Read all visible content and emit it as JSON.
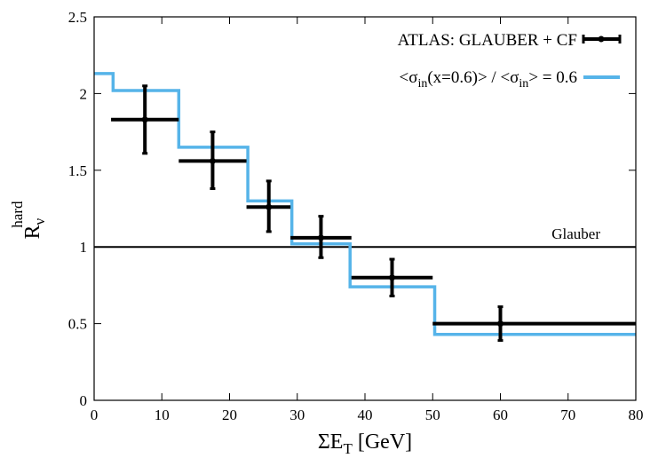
{
  "chart_data": {
    "type": "line",
    "x_axis": {
      "title_main": "ΣE",
      "title_sub": "T",
      "title_unit": " [GeV]",
      "range": [
        0,
        80
      ],
      "ticks": [
        0,
        10,
        20,
        30,
        40,
        50,
        60,
        70,
        80
      ],
      "tick_labels": [
        "0",
        "10",
        "20",
        "30",
        "40",
        "50",
        "60",
        "70",
        "80"
      ]
    },
    "y_axis": {
      "title_main": "R",
      "title_sub": "ν",
      "title_sup": "hard",
      "range": [
        0,
        2.5
      ],
      "ticks": [
        0,
        0.5,
        1,
        1.5,
        2,
        2.5
      ],
      "tick_labels": [
        "0",
        "0.5",
        "1",
        "1.5",
        "2",
        "2.5"
      ]
    },
    "grid": false,
    "legend_position": "top-right",
    "reference_line": {
      "y": 1,
      "label": "Glauber"
    },
    "series": [
      {
        "name": "ATLAS: GLAUBER + CF",
        "kind": "points_with_errors",
        "color": "#000000",
        "points": [
          {
            "x": 7.5,
            "y": 1.83,
            "xlo": 2.5,
            "xhi": 12.5,
            "ylo": 1.61,
            "yhi": 2.05
          },
          {
            "x": 17.5,
            "y": 1.56,
            "xlo": 12.5,
            "xhi": 22.5,
            "ylo": 1.38,
            "yhi": 1.75
          },
          {
            "x": 25.8,
            "y": 1.26,
            "xlo": 22.5,
            "xhi": 29.0,
            "ylo": 1.1,
            "yhi": 1.43
          },
          {
            "x": 33.5,
            "y": 1.06,
            "xlo": 29.0,
            "xhi": 38.0,
            "ylo": 0.93,
            "yhi": 1.2
          },
          {
            "x": 44.0,
            "y": 0.8,
            "xlo": 38.0,
            "xhi": 50.0,
            "ylo": 0.68,
            "yhi": 0.92
          },
          {
            "x": 60.0,
            "y": 0.5,
            "xlo": 50.0,
            "xhi": 80.0,
            "ylo": 0.39,
            "yhi": 0.61
          }
        ]
      },
      {
        "name_parts": [
          "<σ",
          "in",
          "(x=0.6)> / <σ",
          "in",
          "> = 0.6"
        ],
        "kind": "step",
        "color": "#56b4e9",
        "steps": [
          {
            "x0": 0,
            "x1": 2.8,
            "y": 2.13
          },
          {
            "x0": 2.8,
            "x1": 12.5,
            "y": 2.02
          },
          {
            "x0": 12.5,
            "x1": 22.7,
            "y": 1.65
          },
          {
            "x0": 22.7,
            "x1": 29.2,
            "y": 1.3
          },
          {
            "x0": 29.2,
            "x1": 37.8,
            "y": 1.02
          },
          {
            "x0": 37.8,
            "x1": 50.3,
            "y": 0.74
          },
          {
            "x0": 50.3,
            "x1": 80,
            "y": 0.43
          }
        ]
      }
    ]
  }
}
